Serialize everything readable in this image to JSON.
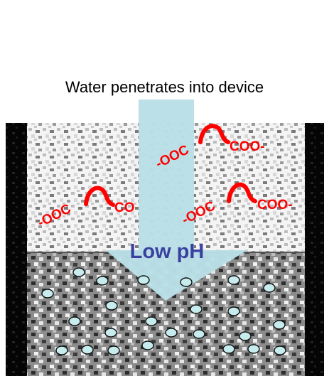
{
  "caption": "Water penetrates into device",
  "arrow_label": "Low pH",
  "polymer_labels": [
    {
      "left": "-OOC",
      "right": "COO-"
    },
    {
      "left": "-OOC",
      "right": "CO"
    },
    {
      "left": "-OOC",
      "right": "COO-"
    }
  ],
  "colors": {
    "arrow_fill": "#b9dfe6",
    "arrow_text": "#3a40a0",
    "polymer": "#ff0000",
    "particle_fill": "#c6ecee",
    "walls": "#000000"
  }
}
